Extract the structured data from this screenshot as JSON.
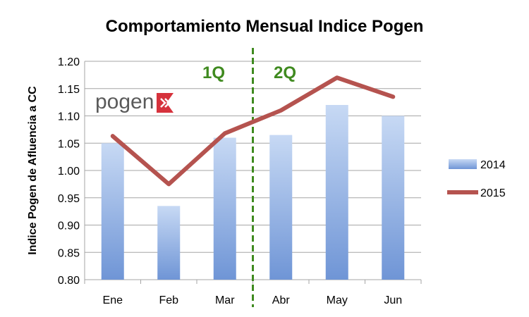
{
  "chart_data": {
    "type": "bar",
    "title": "Comportamiento Mensual Indice Pogen",
    "ylabel": "Indice Pogen de Afluencia a CC",
    "xlabel": "",
    "categories": [
      "Ene",
      "Feb",
      "Mar",
      "Abr",
      "May",
      "Jun"
    ],
    "ylim": [
      0.8,
      1.2
    ],
    "yticks": [
      "0.80",
      "0.85",
      "0.90",
      "0.95",
      "1.00",
      "1.05",
      "1.10",
      "1.15",
      "1.20"
    ],
    "grid": true,
    "legend_position": "right",
    "series": [
      {
        "name": "2014",
        "kind": "bar",
        "values": [
          1.05,
          0.935,
          1.06,
          1.065,
          1.12,
          1.1
        ],
        "color": "#6f95d6"
      },
      {
        "name": "2015",
        "kind": "line",
        "values": [
          1.063,
          0.975,
          1.068,
          1.11,
          1.17,
          1.135
        ],
        "color": "#b5534f"
      }
    ],
    "annotations": [
      {
        "text": "1Q",
        "type": "quarter-label"
      },
      {
        "text": "2Q",
        "type": "quarter-label"
      }
    ],
    "divider": {
      "between": [
        "Mar",
        "Abr"
      ],
      "style": "dashed",
      "color": "#3f8a1f"
    },
    "logo": {
      "text": "pogen",
      "color": "#d6323c"
    }
  }
}
